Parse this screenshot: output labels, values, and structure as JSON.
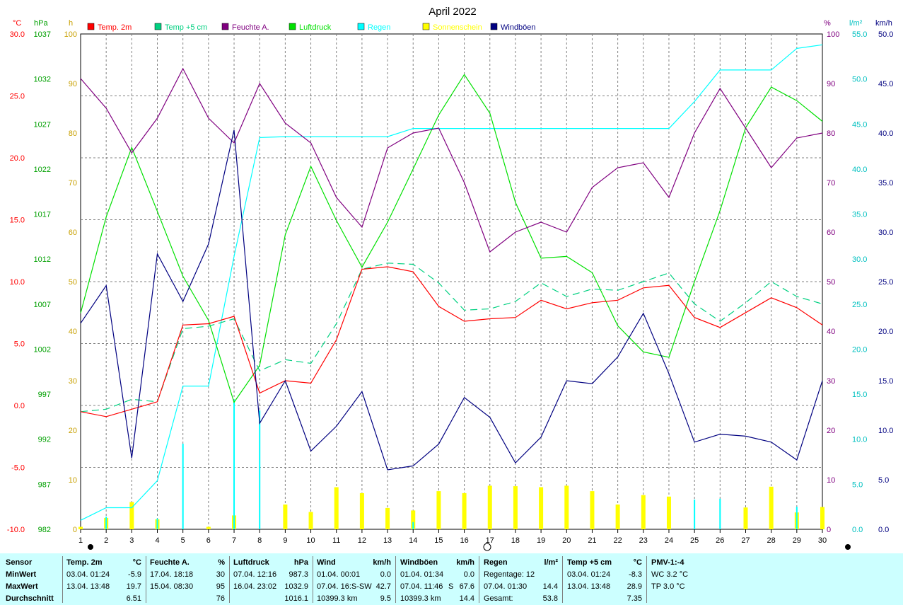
{
  "title": "April 2022",
  "axes": {
    "temp": {
      "unit": "°C",
      "ticks": [
        "30.0",
        "25.0",
        "20.0",
        "15.0",
        "10.0",
        "5.0",
        "0.0",
        "-5.0",
        "-10.0"
      ],
      "color": "#ff0000"
    },
    "pres": {
      "unit": "hPa",
      "ticks": [
        "1037",
        "1032",
        "1027",
        "1022",
        "1017",
        "1012",
        "1007",
        "1002",
        "997",
        "992",
        "987",
        "982"
      ],
      "color": "#00a000"
    },
    "sun": {
      "unit": "h",
      "ticks": [
        "100",
        "90",
        "80",
        "70",
        "60",
        "50",
        "40",
        "30",
        "20",
        "10",
        "0"
      ],
      "color": "#c8a000"
    },
    "hum": {
      "unit": "%",
      "ticks": [
        "100",
        "90",
        "80",
        "70",
        "60",
        "50",
        "40",
        "30",
        "20",
        "10",
        "0"
      ],
      "color": "#800080"
    },
    "rain": {
      "unit": "l/m²",
      "ticks": [
        "55.0",
        "50.0",
        "45.0",
        "40.0",
        "35.0",
        "30.0",
        "25.0",
        "20.0",
        "15.0",
        "10.0",
        "5.0",
        "0.0"
      ],
      "color": "#00c0c0"
    },
    "wind": {
      "unit": "km/h",
      "ticks": [
        "50.0",
        "45.0",
        "40.0",
        "35.0",
        "30.0",
        "25.0",
        "20.0",
        "15.0",
        "10.0",
        "5.0",
        "0.0"
      ],
      "color": "#000080"
    },
    "x_ticks": [
      "1",
      "2",
      "3",
      "4",
      "5",
      "6",
      "7",
      "8",
      "9",
      "10",
      "11",
      "12",
      "13",
      "14",
      "15",
      "16",
      "17",
      "18",
      "19",
      "20",
      "21",
      "22",
      "23",
      "24",
      "25",
      "26",
      "27",
      "28",
      "29",
      "30"
    ]
  },
  "legend": [
    {
      "label": "Temp. 2m",
      "color": "#ff0000"
    },
    {
      "label": "Temp +5 cm",
      "color": "#00d080"
    },
    {
      "label": "Feuchte A.",
      "color": "#800080"
    },
    {
      "label": "Luftdruck",
      "color": "#00e000"
    },
    {
      "label": "Regen",
      "color": "#00ffff"
    },
    {
      "label": "Sonnenschein",
      "color": "#ffff00"
    },
    {
      "label": "Windböen",
      "color": "#000080"
    }
  ],
  "chart_data": {
    "type": "line",
    "title": "April 2022",
    "x": [
      1,
      2,
      3,
      4,
      5,
      6,
      7,
      8,
      9,
      10,
      11,
      12,
      13,
      14,
      15,
      16,
      17,
      18,
      19,
      20,
      21,
      22,
      23,
      24,
      25,
      26,
      27,
      28,
      29,
      30
    ],
    "series": [
      {
        "name": "Temp. 2m",
        "unit": "°C",
        "axis": "temp",
        "color": "#ff0000",
        "dashed": false,
        "values": [
          -0.5,
          -0.9,
          -0.3,
          0.3,
          6.5,
          6.6,
          7.2,
          1.0,
          2.0,
          1.8,
          5.3,
          11.0,
          11.2,
          10.8,
          8.0,
          6.8,
          7.0,
          7.1,
          8.5,
          7.8,
          8.3,
          8.5,
          9.5,
          9.7,
          7.1,
          6.3,
          7.5,
          8.7,
          7.9,
          6.5
        ]
      },
      {
        "name": "Temp +5 cm",
        "unit": "°C",
        "axis": "temp",
        "color": "#00d080",
        "dashed": true,
        "values": [
          -0.5,
          -0.3,
          0.5,
          0.3,
          6.2,
          6.4,
          7.0,
          2.8,
          3.7,
          3.4,
          6.6,
          11.0,
          11.5,
          11.4,
          9.9,
          7.7,
          7.8,
          8.4,
          9.9,
          8.8,
          9.4,
          9.3,
          10.0,
          10.7,
          8.2,
          6.8,
          8.3,
          10.0,
          8.8,
          8.2
        ]
      },
      {
        "name": "Feuchte A.",
        "unit": "%",
        "axis": "hum",
        "color": "#800080",
        "dashed": false,
        "values": [
          91,
          85,
          76,
          83,
          93,
          83,
          78,
          90,
          82,
          78,
          67,
          61,
          77,
          80,
          81,
          70,
          56,
          60,
          62,
          60,
          69,
          73,
          74,
          67,
          80,
          89,
          81,
          73,
          79,
          80
        ]
      },
      {
        "name": "Luftdruck",
        "unit": "hPa",
        "axis": "pres",
        "color": "#00e000",
        "dashed": false,
        "values": [
          1006,
          1016.7,
          1024.4,
          1017.3,
          1010.1,
          1005.2,
          996.1,
          1000.2,
          1014.7,
          1022.3,
          1016.3,
          1011.1,
          1016.1,
          1022.0,
          1028.0,
          1032.5,
          1028.2,
          1018.3,
          1012.1,
          1012.3,
          1010.5,
          1004.6,
          1001.7,
          1001.1,
          1009.5,
          1017.4,
          1026.6,
          1031.1,
          1029.6,
          1027.3
        ]
      },
      {
        "name": "Regen",
        "unit": "l/m²",
        "axis": "rain",
        "color": "#00ffff",
        "dashed": false,
        "values": [
          1.0,
          2.4,
          2.4,
          5.4,
          15.9,
          15.9,
          30.3,
          43.5,
          43.6,
          43.6,
          43.6,
          43.6,
          43.6,
          44.5,
          44.5,
          44.5,
          44.5,
          44.5,
          44.5,
          44.5,
          44.5,
          44.5,
          44.5,
          44.5,
          47.5,
          51.0,
          51.0,
          51.0,
          53.4,
          53.8
        ]
      },
      {
        "name": "Windböen",
        "unit": "km/h",
        "axis": "wind",
        "color": "#000080",
        "dashed": false,
        "values": [
          20.8,
          24.6,
          7.2,
          27.8,
          23.0,
          28.8,
          40.3,
          10.7,
          15.0,
          7.9,
          10.4,
          13.9,
          6.0,
          6.4,
          8.6,
          13.3,
          11.3,
          6.7,
          9.3,
          15.0,
          14.7,
          17.4,
          21.8,
          15.7,
          8.8,
          9.6,
          9.4,
          8.8,
          7.0,
          15.0
        ]
      }
    ],
    "bars": [
      {
        "name": "Sonnenschein",
        "unit": "h",
        "axis": "sun",
        "color": "#ffff00",
        "values": [
          0.5,
          2.3,
          5.5,
          2.0,
          0,
          0.5,
          2.8,
          0,
          5.0,
          3.5,
          8.5,
          7.3,
          4.3,
          3.8,
          7.7,
          7.3,
          8.8,
          8.7,
          8.5,
          8.8,
          7.7,
          5.0,
          6.9,
          6.6,
          0,
          0,
          4.4,
          8.6,
          3.4,
          4.5
        ]
      },
      {
        "name": "Regen",
        "unit": "l/m²",
        "axis": "rain",
        "color": "#00ffff",
        "values": [
          0,
          1.4,
          0,
          1.2,
          9.5,
          0,
          14.4,
          13.2,
          0,
          0,
          0,
          0,
          0,
          0.8,
          0,
          0,
          0,
          0,
          0,
          0,
          0,
          0,
          0,
          0,
          3.3,
          3.4,
          0,
          0,
          2.5,
          0
        ]
      }
    ],
    "xlim": [
      1,
      30
    ],
    "grid": true,
    "legend_position": "top"
  },
  "stats": {
    "sensor": {
      "title": "Sensor",
      "rows": [
        "MinWert",
        "MaxWert",
        "Durchschnitt"
      ]
    },
    "temp2m": {
      "title": "Temp. 2m",
      "unit": "°C",
      "min_time": "03.04.  01:24",
      "min": "-5.9",
      "max_time": "13.04.  13:48",
      "max": "19.7",
      "avg": "6.51"
    },
    "hum": {
      "title": "Feuchte A.",
      "unit": "%",
      "min_time": "17.04.  18:18",
      "min": "30",
      "max_time": "15.04.  08:30",
      "max": "95",
      "avg": "76"
    },
    "pres": {
      "title": "Luftdruck",
      "unit": "hPa",
      "min_time": "07.04.  12:16",
      "min": "987.3",
      "max_time": "16.04.  23:02",
      "max": "1032.9",
      "avg": "1016.1"
    },
    "wind": {
      "title": "Wind",
      "unit": "km/h",
      "min_time": "01.04.  00:01",
      "min": "0.0",
      "max_time": "07.04.  16:S-SW",
      "max": "42.7",
      "total": "10399.3 km",
      "avg": "9.5"
    },
    "gust": {
      "title": "Windböen",
      "unit": "km/h",
      "min_time": "01.04.  01:34",
      "min": "0.0",
      "max_time": "07.04.  11:46",
      "max_dir": "S",
      "max": "67.6",
      "total": "10399.3 km",
      "avg": "14.4"
    },
    "rain": {
      "title": "Regen",
      "unit": "l/m²",
      "days": "Regentage: 12",
      "max_time": "07.04.  01:30",
      "max": "14.4",
      "total_label": "Gesamt:",
      "total": "53.8"
    },
    "t5": {
      "title": "Temp +5 cm",
      "unit": "°C",
      "min_time": "03.04.  01:24",
      "min": "-8.3",
      "max_time": "13.04.  13:48",
      "max": "28.9",
      "avg": "7.35"
    },
    "pmv": {
      "title": "PMV-1:-4",
      "wc": "WC 3.2 °C",
      "tp": "TP 3.0 °C"
    }
  }
}
